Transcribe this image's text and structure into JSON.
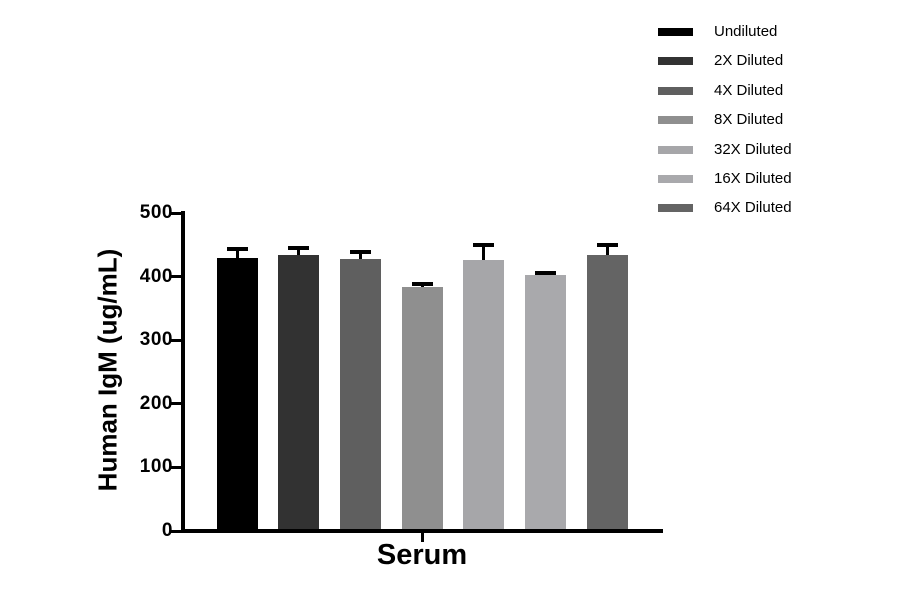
{
  "chart_data": {
    "type": "bar",
    "title": "",
    "xlabel": "Serum",
    "ylabel": "Human IgM (ug/mL)",
    "categories": [
      "Serum"
    ],
    "ylim": [
      0,
      500
    ],
    "yticks": [
      0,
      100,
      200,
      300,
      400,
      500
    ],
    "grid": false,
    "legend_position": "top-right",
    "error_bar_style": "upper-only-with-cap",
    "error_bar_color": "#000000",
    "axis_color": "#000000",
    "background_color": "#ffffff",
    "series": [
      {
        "name": "Undiluted",
        "value": 430,
        "error": 13,
        "color": "#000000"
      },
      {
        "name": "2X Diluted",
        "value": 434,
        "error": 11,
        "color": "#323232"
      },
      {
        "name": "4X Diluted",
        "value": 428,
        "error": 11,
        "color": "#5f5f5f"
      },
      {
        "name": "8X Diluted",
        "value": 384,
        "error": 4,
        "color": "#8f8f8f",
        "pattern": "dots"
      },
      {
        "name": "32X Diluted",
        "value": 426,
        "error": 24,
        "color": "#a6a6a9"
      },
      {
        "name": "16X Diluted",
        "value": 402,
        "error": 4,
        "color": "#a9a9ac"
      },
      {
        "name": "64X Diluted",
        "value": 434,
        "error": 15,
        "color": "#646464"
      }
    ]
  }
}
